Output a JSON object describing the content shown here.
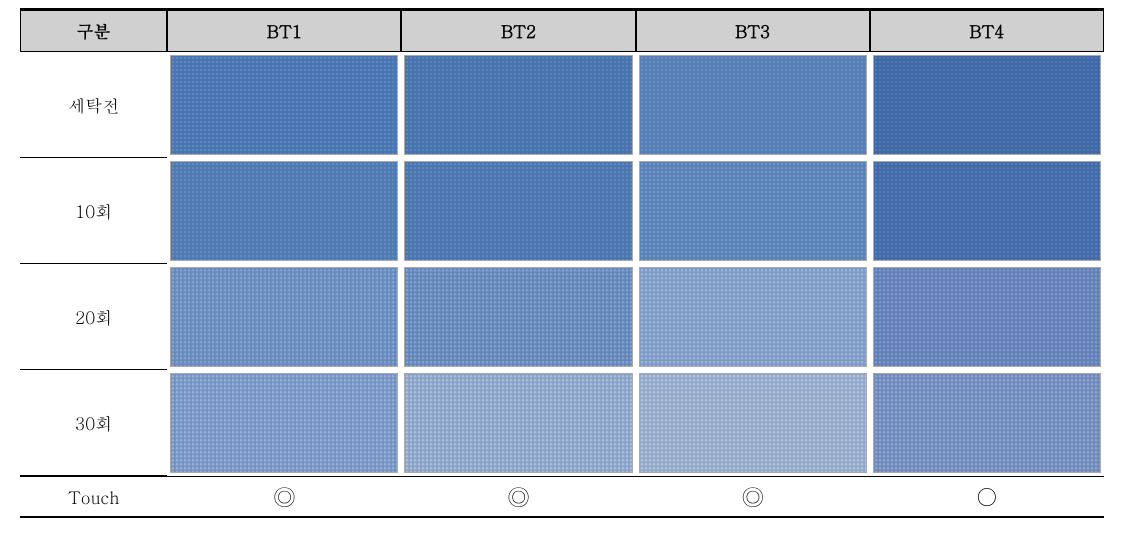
{
  "table": {
    "header_label": "구분",
    "columns": [
      "BT1",
      "BT2",
      "BT3",
      "BT4"
    ],
    "rows": [
      {
        "label": "세탁전",
        "swatches": [
          {
            "bg": "#5a88c1",
            "texture": "#4a75b0",
            "overlay": "none"
          },
          {
            "bg": "#5983bd",
            "texture": "#4973ad",
            "overlay": "none"
          },
          {
            "bg": "#678fc5",
            "texture": "#577fb5",
            "overlay": "none"
          },
          {
            "bg": "#4f78b5",
            "texture": "#3f68a5",
            "overlay": "none"
          }
        ]
      },
      {
        "label": "10회",
        "swatches": [
          {
            "bg": "#5e89c2",
            "texture": "#4e79b2",
            "overlay": "rgba(255,255,255,0.03)"
          },
          {
            "bg": "#5b85bf",
            "texture": "#4b75af",
            "overlay": "rgba(255,255,255,0.04)"
          },
          {
            "bg": "#6a91c6",
            "texture": "#5a81b6",
            "overlay": "rgba(255,255,255,0.06)"
          },
          {
            "bg": "#527ab7",
            "texture": "#426aa7",
            "overlay": "rgba(255,255,255,0.03)"
          }
        ]
      },
      {
        "label": "20회",
        "swatches": [
          {
            "bg": "#6e92c5",
            "texture": "#6388bb",
            "overlay": "rgba(255,255,255,0.22)"
          },
          {
            "bg": "#6b8fc3",
            "texture": "#6085b9",
            "overlay": "rgba(255,255,255,0.24)"
          },
          {
            "bg": "#85a3cd",
            "texture": "#7a98c3",
            "overlay": "rgba(255,255,255,0.28)"
          },
          {
            "bg": "#6988bf",
            "texture": "#5e7db5",
            "overlay": "rgba(255,255,255,0.20)"
          }
        ]
      },
      {
        "label": "30회",
        "swatches": [
          {
            "bg": "#7a9ac9",
            "texture": "#7090bf",
            "overlay": "rgba(255,255,255,0.30)"
          },
          {
            "bg": "#90aad0",
            "texture": "#86a0c6",
            "overlay": "rgba(255,255,255,0.34)"
          },
          {
            "bg": "#9ab0d2",
            "texture": "#90a6c8",
            "overlay": "rgba(255,255,255,0.35)"
          },
          {
            "bg": "#7490c3",
            "texture": "#6a86b9",
            "overlay": "rgba(255,255,255,0.28)"
          }
        ]
      }
    ],
    "touch_label": "Touch",
    "touch_values": [
      "◎",
      "◎",
      "◎",
      "○"
    ]
  },
  "styling": {
    "header_bg": "#d0d0d0",
    "border_color": "#000000",
    "cell_border": "#aaaaaa",
    "swatch_height": 100,
    "col1_width": 150,
    "swatch_width": 240,
    "header_fontsize": 17,
    "label_fontsize": 17,
    "touch_fontsize": 22
  }
}
